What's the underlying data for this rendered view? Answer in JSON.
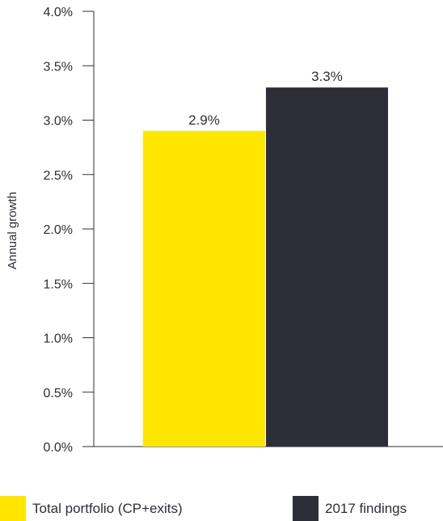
{
  "chart_data": {
    "type": "bar",
    "categories": [
      "Total portfolio (CP+exits)",
      "2017 findings"
    ],
    "values": [
      2.9,
      3.3
    ],
    "value_labels": [
      "2.9%",
      "3.3%"
    ],
    "colors": [
      "#ffe600",
      "#2e2e38"
    ],
    "ylabel": "Annual growth",
    "ylim": [
      0,
      4.0
    ],
    "yticks": [
      0.0,
      0.5,
      1.0,
      1.5,
      2.0,
      2.5,
      3.0,
      3.5,
      4.0
    ],
    "ytick_labels": [
      "0.0%",
      "0.5%",
      "1.0%",
      "1.5%",
      "2.0%",
      "2.5%",
      "3.0%",
      "3.5%",
      "4.0%"
    ],
    "grid": false,
    "legend_position": "bottom"
  }
}
